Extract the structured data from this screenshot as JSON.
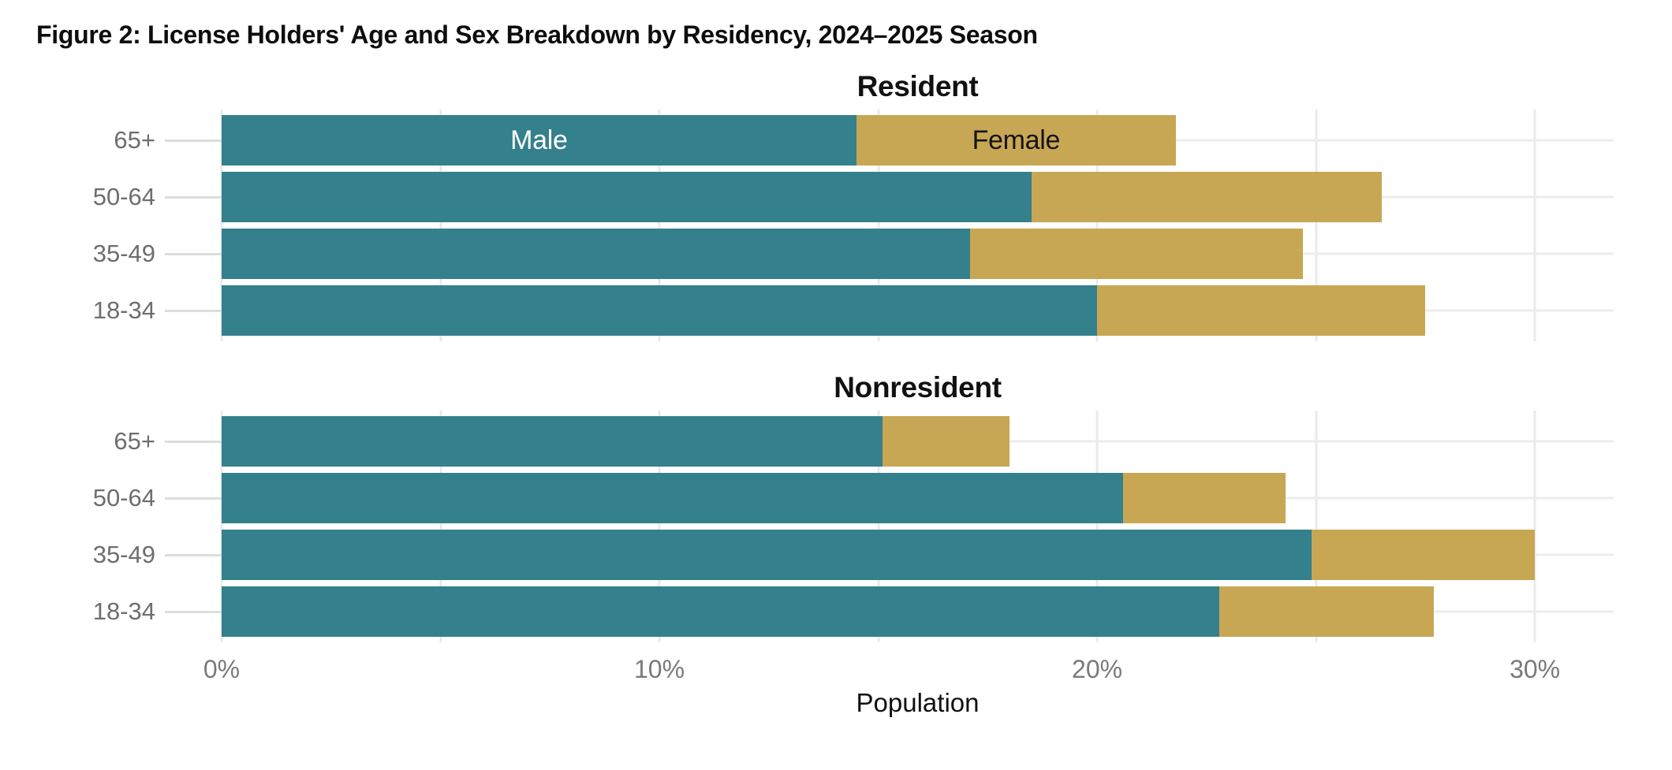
{
  "chart_data": {
    "type": "bar",
    "orientation": "horizontal",
    "stacked": true,
    "title": "Figure 2: License Holders' Age and Sex Breakdown by Residency, 2024–2025 Season",
    "xlabel": "Population",
    "xlim": [
      0,
      31.8
    ],
    "gridlines": [
      0,
      5,
      10,
      15,
      20,
      25,
      30
    ],
    "x_ticks": [
      {
        "value": 0,
        "label": "0%"
      },
      {
        "value": 10,
        "label": "10%"
      },
      {
        "value": 20,
        "label": "20%"
      },
      {
        "value": 30,
        "label": "30%"
      }
    ],
    "series_names": [
      "Male",
      "Female"
    ],
    "colors": {
      "Male": "#35808D",
      "Female": "#C8A754",
      "male_label_text": "#ffffff",
      "female_label_text": "#141414",
      "gridline_vertical": "#eaeaea",
      "gridline_horizontal": "#ececec",
      "axis_text": "#6e6e6e"
    },
    "bar_label_location": {
      "panel_index": 0,
      "row_index": 0
    },
    "panels": [
      {
        "title": "Resident",
        "categories": [
          "65+",
          "50-64",
          "35-49",
          "18-34"
        ],
        "series": [
          {
            "name": "Male",
            "values": [
              14.5,
              18.5,
              17.1,
              20.0
            ]
          },
          {
            "name": "Female",
            "values": [
              7.3,
              8.0,
              7.6,
              7.5
            ]
          }
        ]
      },
      {
        "title": "Nonresident",
        "categories": [
          "65+",
          "50-64",
          "35-49",
          "18-34"
        ],
        "series": [
          {
            "name": "Male",
            "values": [
              15.1,
              20.6,
              24.9,
              22.8
            ]
          },
          {
            "name": "Female",
            "values": [
              2.9,
              3.7,
              5.1,
              4.9
            ]
          }
        ]
      }
    ]
  }
}
